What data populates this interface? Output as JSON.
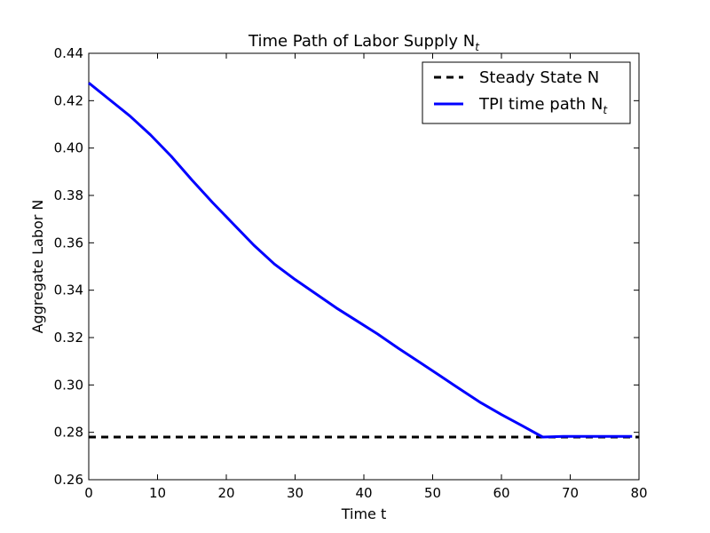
{
  "chart_data": {
    "type": "line",
    "title": "Time Path of Labor Supply N",
    "title_subscript": "t",
    "xlabel": "Time t",
    "ylabel": "Aggregate Labor N",
    "xlim": [
      0,
      80
    ],
    "ylim": [
      0.26,
      0.44
    ],
    "xticks": [
      0,
      10,
      20,
      30,
      40,
      50,
      60,
      70,
      80
    ],
    "xtick_labels": [
      "0",
      "10",
      "20",
      "30",
      "40",
      "50",
      "60",
      "70",
      "80"
    ],
    "yticks": [
      0.26,
      0.28,
      0.3,
      0.32,
      0.34,
      0.36,
      0.38,
      0.4,
      0.42,
      0.44
    ],
    "ytick_labels": [
      "0.26",
      "0.28",
      "0.30",
      "0.32",
      "0.34",
      "0.36",
      "0.38",
      "0.40",
      "0.42",
      "0.44"
    ],
    "grid": false,
    "legend_position": "top-right",
    "series": [
      {
        "name": "Steady State N",
        "style": "dashed",
        "color": "#000000",
        "x": [
          0,
          80
        ],
        "y": [
          0.278,
          0.278
        ]
      },
      {
        "name": "TPI time path N",
        "name_subscript": "t",
        "style": "solid",
        "color": "#0000ff",
        "x": [
          0,
          3,
          6,
          9,
          12,
          15,
          18,
          21,
          24,
          27,
          30,
          33,
          36,
          39,
          42,
          45,
          48,
          51,
          54,
          57,
          60,
          63,
          66,
          69,
          72,
          75,
          79
        ],
        "y": [
          0.4275,
          0.4205,
          0.4135,
          0.4055,
          0.3965,
          0.3865,
          0.377,
          0.368,
          0.359,
          0.351,
          0.3445,
          0.3385,
          0.3325,
          0.327,
          0.3215,
          0.3155,
          0.3098,
          0.304,
          0.2982,
          0.2925,
          0.2875,
          0.2828,
          0.278,
          0.2783,
          0.2783,
          0.2783,
          0.2783
        ]
      }
    ]
  }
}
